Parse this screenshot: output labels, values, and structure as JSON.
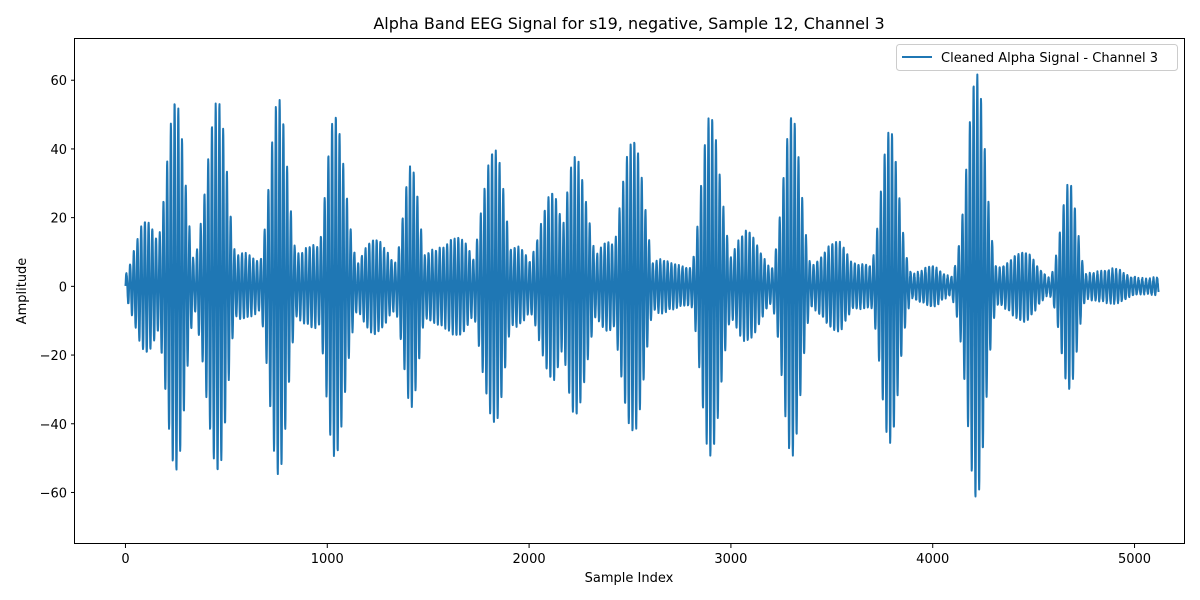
{
  "chart_data": {
    "type": "line",
    "title": "Alpha Band EEG Signal for s19, negative, Sample 12, Channel 3",
    "xlabel": "Sample Index",
    "ylabel": "Amplitude",
    "xlim": [
      -250,
      5250
    ],
    "ylim": [
      -75,
      72
    ],
    "xticks": [
      0,
      1000,
      2000,
      3000,
      4000,
      5000
    ],
    "xtick_labels": [
      "0",
      "1000",
      "2000",
      "3000",
      "4000",
      "5000"
    ],
    "yticks": [
      -60,
      -40,
      -20,
      0,
      20,
      40,
      60
    ],
    "ytick_labels": [
      "−60",
      "−40",
      "−20",
      "0",
      "20",
      "40",
      "60"
    ],
    "grid": false,
    "legend_position": "top-right",
    "series": [
      {
        "name": "Cleaned Alpha Signal - Channel 3",
        "color": "#1f77b4",
        "x_start": 0,
        "x_end": 5119,
        "bursts": [
          {
            "center": 120,
            "width": 90,
            "amp": 22
          },
          {
            "center": 240,
            "width": 70,
            "amp": 60
          },
          {
            "center": 445,
            "width": 70,
            "amp": 68
          },
          {
            "center": 610,
            "width": 120,
            "amp": 12
          },
          {
            "center": 760,
            "width": 70,
            "amp": 55
          },
          {
            "center": 900,
            "width": 120,
            "amp": 15
          },
          {
            "center": 1050,
            "width": 70,
            "amp": 58
          },
          {
            "center": 1250,
            "width": 140,
            "amp": 14
          },
          {
            "center": 1410,
            "width": 60,
            "amp": 38
          },
          {
            "center": 1600,
            "width": 150,
            "amp": 17
          },
          {
            "center": 1820,
            "width": 70,
            "amp": 55
          },
          {
            "center": 1950,
            "width": 120,
            "amp": 12
          },
          {
            "center": 2100,
            "width": 90,
            "amp": 30
          },
          {
            "center": 2240,
            "width": 70,
            "amp": 50
          },
          {
            "center": 2400,
            "width": 130,
            "amp": 13
          },
          {
            "center": 2510,
            "width": 70,
            "amp": 60
          },
          {
            "center": 2700,
            "width": 150,
            "amp": 9
          },
          {
            "center": 2910,
            "width": 70,
            "amp": 58
          },
          {
            "center": 3080,
            "width": 130,
            "amp": 16
          },
          {
            "center": 3300,
            "width": 70,
            "amp": 50
          },
          {
            "center": 3500,
            "width": 130,
            "amp": 14
          },
          {
            "center": 3650,
            "width": 120,
            "amp": 9
          },
          {
            "center": 3790,
            "width": 70,
            "amp": 46
          },
          {
            "center": 3970,
            "width": 140,
            "amp": 6
          },
          {
            "center": 4210,
            "width": 70,
            "amp": 65
          },
          {
            "center": 4420,
            "width": 140,
            "amp": 11
          },
          {
            "center": 4670,
            "width": 60,
            "amp": 32
          },
          {
            "center": 4850,
            "width": 150,
            "amp": 6
          }
        ],
        "baseline_amp": 3,
        "cycle_length": 18.5
      }
    ]
  }
}
